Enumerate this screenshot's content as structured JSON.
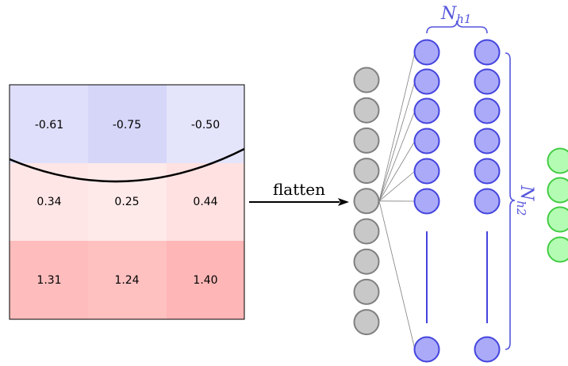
{
  "grid": {
    "rows": [
      {
        "values": [
          "-0.61",
          "-0.75",
          "-0.50"
        ],
        "colors": [
          "#dfdffb",
          "#d6d6f9",
          "#e4e4fb"
        ]
      },
      {
        "values": [
          "0.34",
          "0.25",
          "0.44"
        ],
        "colors": [
          "#ffe6e6",
          "#ffeaea",
          "#ffe1e1"
        ]
      },
      {
        "values": [
          "1.31",
          "1.24",
          "1.40"
        ],
        "colors": [
          "#ffbcbc",
          "#ffc0c0",
          "#ffb6b6"
        ]
      }
    ]
  },
  "arrow_label": "flatten",
  "labels": {
    "nh1_main": "N",
    "nh1_sub": "h1",
    "nh2_main": "N",
    "nh2_sub": "h2"
  },
  "colors": {
    "input_node": "#c8c8c8",
    "input_stroke": "#808080",
    "hidden_node": "#aaaaf8",
    "hidden_stroke": "#4444dd",
    "output_node": "#b4fcb4",
    "output_stroke": "#44cc44",
    "label": "#5555dd"
  },
  "network": {
    "input_nodes": 9,
    "hidden_visible_nodes": 7,
    "output_nodes": 4
  }
}
